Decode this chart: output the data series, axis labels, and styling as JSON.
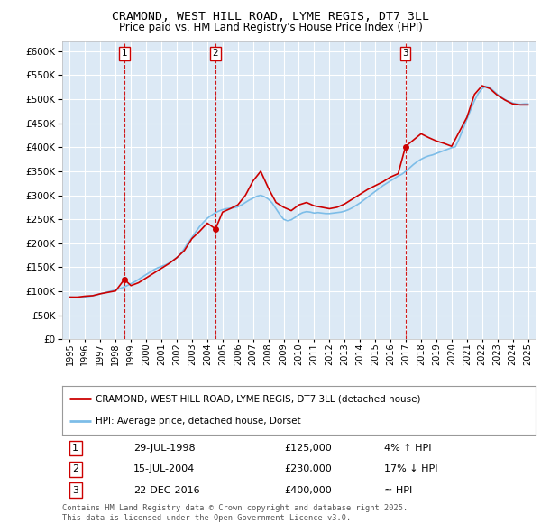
{
  "title": "CRAMOND, WEST HILL ROAD, LYME REGIS, DT7 3LL",
  "subtitle": "Price paid vs. HM Land Registry's House Price Index (HPI)",
  "legend_label_red": "CRAMOND, WEST HILL ROAD, LYME REGIS, DT7 3LL (detached house)",
  "legend_label_blue": "HPI: Average price, detached house, Dorset",
  "footnote": "Contains HM Land Registry data © Crown copyright and database right 2025.\nThis data is licensed under the Open Government Licence v3.0.",
  "transactions": [
    {
      "num": 1,
      "date": "29-JUL-1998",
      "price": 125000,
      "rel": "4% ↑ HPI",
      "year": 1998.57
    },
    {
      "num": 2,
      "date": "15-JUL-2004",
      "price": 230000,
      "rel": "17% ↓ HPI",
      "year": 2004.54
    },
    {
      "num": 3,
      "date": "22-DEC-2016",
      "price": 400000,
      "rel": "≈ HPI",
      "year": 2016.97
    }
  ],
  "hpi_color": "#7dbde8",
  "price_color": "#cc0000",
  "dashed_color": "#cc0000",
  "bg_color": "#dce9f5",
  "grid_color": "#ffffff",
  "ylim": [
    0,
    620000
  ],
  "yticks": [
    0,
    50000,
    100000,
    150000,
    200000,
    250000,
    300000,
    350000,
    400000,
    450000,
    500000,
    550000,
    600000
  ],
  "xlim_start": 1994.5,
  "xlim_end": 2025.5,
  "hpi_data": {
    "years": [
      1995.0,
      1995.25,
      1995.5,
      1995.75,
      1996.0,
      1996.25,
      1996.5,
      1996.75,
      1997.0,
      1997.25,
      1997.5,
      1997.75,
      1998.0,
      1998.25,
      1998.5,
      1998.75,
      1999.0,
      1999.25,
      1999.5,
      1999.75,
      2000.0,
      2000.25,
      2000.5,
      2000.75,
      2001.0,
      2001.25,
      2001.5,
      2001.75,
      2002.0,
      2002.25,
      2002.5,
      2002.75,
      2003.0,
      2003.25,
      2003.5,
      2003.75,
      2004.0,
      2004.25,
      2004.5,
      2004.75,
      2005.0,
      2005.25,
      2005.5,
      2005.75,
      2006.0,
      2006.25,
      2006.5,
      2006.75,
      2007.0,
      2007.25,
      2007.5,
      2007.75,
      2008.0,
      2008.25,
      2008.5,
      2008.75,
      2009.0,
      2009.25,
      2009.5,
      2009.75,
      2010.0,
      2010.25,
      2010.5,
      2010.75,
      2011.0,
      2011.25,
      2011.5,
      2011.75,
      2012.0,
      2012.25,
      2012.5,
      2012.75,
      2013.0,
      2013.25,
      2013.5,
      2013.75,
      2014.0,
      2014.25,
      2014.5,
      2014.75,
      2015.0,
      2015.25,
      2015.5,
      2015.75,
      2016.0,
      2016.25,
      2016.5,
      2016.75,
      2017.0,
      2017.25,
      2017.5,
      2017.75,
      2018.0,
      2018.25,
      2018.5,
      2018.75,
      2019.0,
      2019.25,
      2019.5,
      2019.75,
      2020.0,
      2020.25,
      2020.5,
      2020.75,
      2021.0,
      2021.25,
      2021.5,
      2021.75,
      2022.0,
      2022.25,
      2022.5,
      2022.75,
      2023.0,
      2023.25,
      2023.5,
      2023.75,
      2024.0,
      2024.25,
      2024.5,
      2024.75,
      2025.0
    ],
    "values": [
      88000,
      87500,
      87000,
      87500,
      88500,
      89500,
      91000,
      92500,
      95000,
      97000,
      99000,
      101000,
      103000,
      105500,
      108500,
      112000,
      116000,
      120000,
      125000,
      130000,
      135000,
      140000,
      145000,
      149000,
      152000,
      155000,
      159000,
      164000,
      170000,
      178000,
      189000,
      202000,
      212000,
      224000,
      235000,
      244000,
      252000,
      258000,
      263000,
      267000,
      270000,
      272000,
      273000,
      274000,
      276000,
      280000,
      285000,
      290000,
      294000,
      298000,
      300000,
      297000,
      292000,
      284000,
      272000,
      260000,
      250000,
      247000,
      249000,
      254000,
      260000,
      264000,
      266000,
      265000,
      263000,
      264000,
      263000,
      262000,
      262000,
      263000,
      264000,
      265000,
      267000,
      270000,
      274000,
      279000,
      284000,
      290000,
      296000,
      302000,
      308000,
      314000,
      320000,
      325000,
      330000,
      335000,
      340000,
      344000,
      350000,
      357000,
      364000,
      370000,
      375000,
      379000,
      382000,
      384000,
      387000,
      390000,
      393000,
      396000,
      399000,
      401000,
      418000,
      438000,
      458000,
      478000,
      497000,
      512000,
      522000,
      527000,
      524000,
      517000,
      510000,
      504000,
      499000,
      495000,
      492000,
      490000,
      489000,
      490000,
      490000
    ]
  },
  "price_data": {
    "years": [
      1995.0,
      1995.5,
      1996.0,
      1996.5,
      1997.0,
      1997.5,
      1998.0,
      1998.57,
      1999.0,
      1999.5,
      2000.0,
      2000.5,
      2001.0,
      2001.5,
      2002.0,
      2002.5,
      2003.0,
      2003.5,
      2004.0,
      2004.54,
      2005.0,
      2005.5,
      2006.0,
      2006.5,
      2007.0,
      2007.5,
      2008.0,
      2008.5,
      2009.0,
      2009.5,
      2010.0,
      2010.5,
      2011.0,
      2011.5,
      2012.0,
      2012.5,
      2013.0,
      2013.5,
      2014.0,
      2014.5,
      2015.0,
      2015.5,
      2016.0,
      2016.5,
      2016.97,
      2017.0,
      2017.5,
      2018.0,
      2018.5,
      2019.0,
      2019.5,
      2020.0,
      2020.5,
      2021.0,
      2021.5,
      2022.0,
      2022.5,
      2023.0,
      2023.5,
      2024.0,
      2024.5,
      2025.0
    ],
    "values": [
      88000,
      88000,
      90000,
      91000,
      95000,
      98000,
      101000,
      125000,
      112000,
      118000,
      128000,
      138000,
      148000,
      158000,
      170000,
      185000,
      210000,
      225000,
      242000,
      230000,
      265000,
      272000,
      280000,
      300000,
      330000,
      350000,
      315000,
      285000,
      275000,
      268000,
      280000,
      285000,
      278000,
      275000,
      272000,
      275000,
      282000,
      292000,
      302000,
      312000,
      320000,
      328000,
      338000,
      345000,
      400000,
      402000,
      415000,
      428000,
      420000,
      413000,
      408000,
      402000,
      432000,
      462000,
      510000,
      528000,
      522000,
      508000,
      498000,
      490000,
      488000,
      488000
    ]
  }
}
